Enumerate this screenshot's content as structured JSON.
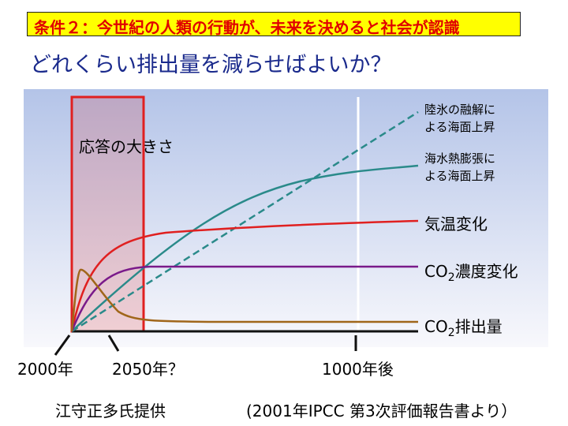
{
  "banner": {
    "text": "条件２：今世紀の人類の行動が、未来を決めると社会が認識",
    "bg_color": "#ffff00",
    "text_color": "#e00000"
  },
  "subtitle": "どれくらい排出量を減らせばよいか？",
  "diagram": {
    "response_label": "応答の大きさ",
    "curves": [
      {
        "id": "ice-melt",
        "label_lines": [
          "陸氷の融解に",
          "よる海面上昇"
        ],
        "color": "#2a8a8a",
        "style": "dashed"
      },
      {
        "id": "thermal",
        "label_lines": [
          "海水熱膨張に",
          "よる海面上昇"
        ],
        "color": "#2a8a8a",
        "style": "solid"
      },
      {
        "id": "temperature",
        "label": "気温変化",
        "color": "#e02020"
      },
      {
        "id": "co2-conc",
        "label_pre": "CO",
        "label_sub": "2",
        "label_post": "濃度変化",
        "color": "#7a1a8a"
      },
      {
        "id": "co2-emission",
        "label_pre": "CO",
        "label_sub": "2",
        "label_post": "排出量",
        "color": "#a0661a"
      }
    ],
    "time_labels": [
      "2000年",
      "2050年？",
      "1000年後"
    ],
    "credit": "江守正多氏提供",
    "source": "(2001年IPCC 第3次評価報告書より）",
    "highlight_color": "#e02020"
  }
}
